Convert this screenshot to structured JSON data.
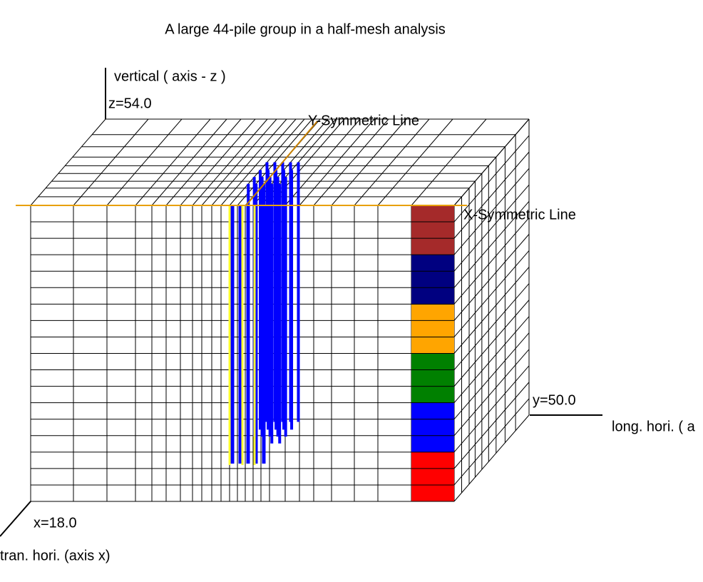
{
  "title": "A large 44-pile group in a half-mesh analysis",
  "axes": {
    "z_label": "vertical ( axis - z )",
    "z_value": "z=54.0",
    "y_label": "long. hori. ( a",
    "y_value": "y=50.0",
    "x_label": "tran. hori. (axis x)",
    "x_value": "x=18.0"
  },
  "annotations": {
    "y_symmetric": "Y-Symmetric Line",
    "x_symmetric": "X-Symmetric Line"
  }
}
